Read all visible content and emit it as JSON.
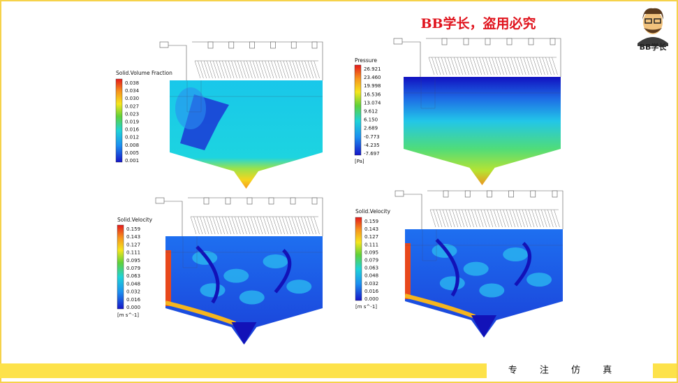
{
  "header": {
    "watermark": "BB学长，盗用必究",
    "avatar_label": "BB学长"
  },
  "panels": [
    {
      "title": "Solid.Volume Fraction",
      "labels": [
        "0.038",
        "0.034",
        "0.030",
        "0.027",
        "0.023",
        "0.019",
        "0.016",
        "0.012",
        "0.008",
        "0.005",
        "0.001"
      ]
    },
    {
      "title": "Pressure",
      "labels": [
        "26.921",
        "23.460",
        "19.998",
        "16.536",
        "13.074",
        "9.612",
        "6.150",
        "2.689",
        "-0.773",
        "-4.235",
        "-7.697"
      ],
      "unit": "[Pa]"
    },
    {
      "title": "Solid.Velocity",
      "labels": [
        "0.159",
        "0.143",
        "0.127",
        "0.111",
        "0.095",
        "0.079",
        "0.063",
        "0.048",
        "0.032",
        "0.016",
        "0.000"
      ],
      "unit": "[m s^-1]"
    },
    {
      "title": "Solid.Velocity",
      "labels": [
        "0.159",
        "0.143",
        "0.127",
        "0.111",
        "0.095",
        "0.079",
        "0.063",
        "0.048",
        "0.032",
        "0.016",
        "0.000"
      ],
      "unit": "[m s^-1]"
    }
  ],
  "footer": {
    "slogan": "专 注 仿 真"
  }
}
